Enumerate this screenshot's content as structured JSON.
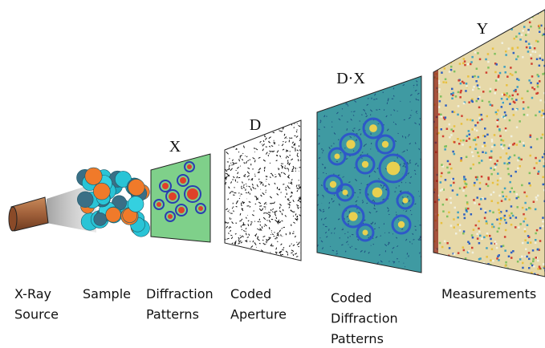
{
  "stages": [
    {
      "lines": [
        "X-Ray",
        "Source"
      ]
    },
    {
      "lines": [
        "Sample"
      ]
    },
    {
      "lines": [
        "Diffraction",
        "Patterns"
      ],
      "symbol": "X"
    },
    {
      "lines": [
        "Coded",
        "Aperture"
      ],
      "symbol": "D"
    },
    {
      "lines": [
        "Coded",
        "Diffraction",
        "Patterns"
      ],
      "symbol": "D·X"
    },
    {
      "lines": [
        "Measurements"
      ],
      "symbol": "Y"
    }
  ]
}
